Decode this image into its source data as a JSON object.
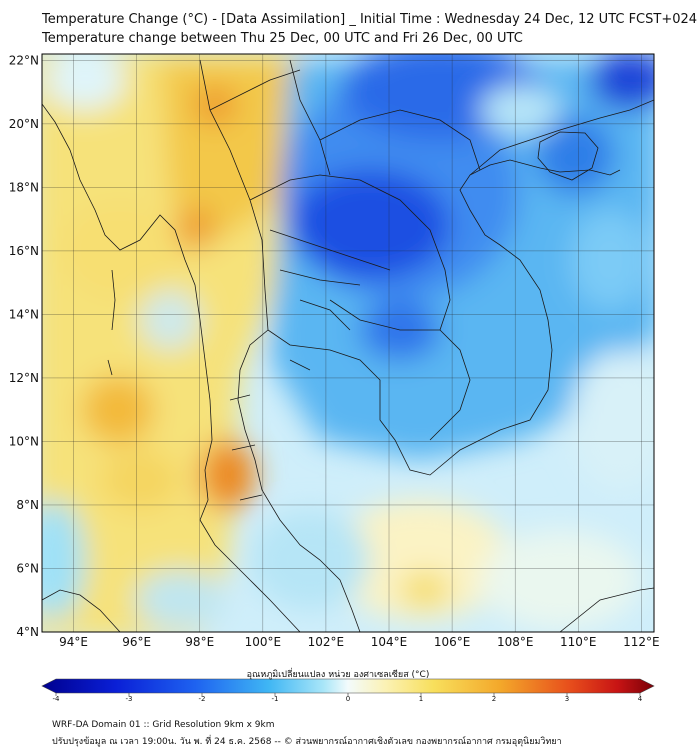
{
  "title": {
    "line1": "Temperature Change (°C) - [Data Assimilation] _ Initial Time : Wednesday 24 Dec, 12 UTC FCST+024",
    "line2": "Temperature change between Thu 25 Dec, 00 UTC and Fri 26 Dec, 00 UTC"
  },
  "axes": {
    "lat_labels": [
      "22°N",
      "20°N",
      "18°N",
      "16°N",
      "14°N",
      "12°N",
      "10°N",
      "8°N",
      "6°N",
      "4°N"
    ],
    "lon_labels": [
      "94°E",
      "96°E",
      "98°E",
      "100°E",
      "102°E",
      "104°E",
      "106°E",
      "108°E",
      "110°E",
      "112°E"
    ],
    "lat_range": [
      4,
      22.2
    ],
    "lon_range": [
      93,
      112.4
    ]
  },
  "colorbar": {
    "title": "อุณหภูมิเปลี่ยนแปลง หน่วย องศาเซลเซียส (°C)",
    "ticks": [
      "-4",
      "-3",
      "-2",
      "-1",
      "0",
      "1",
      "2",
      "3",
      "4"
    ],
    "range": [
      -4,
      4
    ]
  },
  "footer": {
    "line1": "WRF-DA Domain 01 :: Grid Resolution 9km x 9km",
    "line2": "ปรับปรุงข้อมูล ณ เวลา 19:00น. วัน พ. ที่ 24 ธ.ค. 2568 -- © ส่วนพยากรณ์อากาศเชิงตัวเลข กองพยากรณ์อากาศ กรมอุตุนิยมวิทยา"
  },
  "colors": {
    "ocean_base": "#d6f0fb",
    "cold_strong": "#1436d8",
    "cold": "#2f8bf0",
    "cool": "#8fdcf7",
    "warm": "#f7df6a",
    "hot": "#f1a62a",
    "very_hot": "#e66a1c"
  }
}
